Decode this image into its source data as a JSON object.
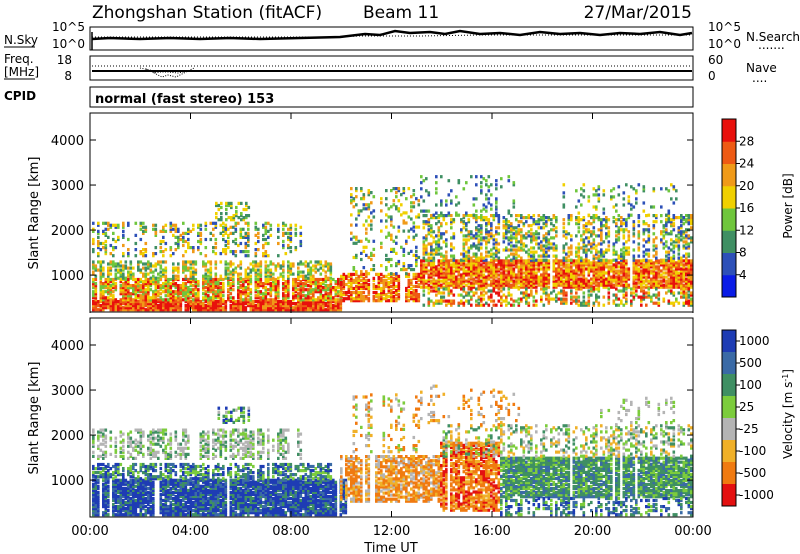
{
  "header": {
    "title": "Zhongshan Station (fitACF)",
    "beam": "Beam 11",
    "date": "27/Mar/2015"
  },
  "panels": {
    "nsky": {
      "label": "N.Sky",
      "left_ticks": [
        "10^5",
        "10^0"
      ],
      "right_ticks": [
        "10^5",
        "10^0"
      ],
      "right_label": "N.Search",
      "right_legend": "......."
    },
    "freq": {
      "label_line1": "Freq.",
      "label_line2": "[MHz]",
      "left_ticks": [
        "18",
        "8"
      ],
      "right_ticks": [
        "60",
        "0"
      ],
      "right_label": "Nave",
      "right_legend": "...."
    },
    "cpid": {
      "label": "CPID",
      "text": "normal (fast stereo) 153"
    }
  },
  "chart_data": [
    {
      "type": "heatmap",
      "quantity": "Power",
      "ylabel": "Slant Range [km]",
      "xlabel": "",
      "ylim": [
        180,
        4600
      ],
      "yticks": [
        "1000",
        "2000",
        "3000",
        "4000"
      ],
      "colorbar_label": "Power [dB]",
      "colorbar_ticks": [
        "4",
        "8",
        "12",
        "16",
        "20",
        "24",
        "28"
      ],
      "colors": [
        "#0a1ce6",
        "#2d50b8",
        "#3f8f63",
        "#6fc63c",
        "#f0d000",
        "#f09a18",
        "#ee5a14",
        "#e8100c"
      ]
    },
    {
      "type": "heatmap",
      "quantity": "Velocity",
      "ylabel": "Slant Range [km]",
      "xlabel": "Time UT",
      "ylim": [
        180,
        4600
      ],
      "yticks": [
        "1000",
        "2000",
        "3000",
        "4000"
      ],
      "xticks": [
        "00:00",
        "04:00",
        "08:00",
        "12:00",
        "16:00",
        "20:00",
        "00:00"
      ],
      "colorbar_label": "Velocity [m s^-1]",
      "colorbar_ticks": [
        "1000",
        "500",
        "100",
        "25",
        "-25",
        "-100",
        "-500",
        "-1000"
      ],
      "colors": [
        "#1e3cb4",
        "#3a6aa6",
        "#3f8f63",
        "#7ccc3c",
        "#b4b4b4",
        "#f0b028",
        "#f07a10",
        "#e41010"
      ]
    }
  ]
}
